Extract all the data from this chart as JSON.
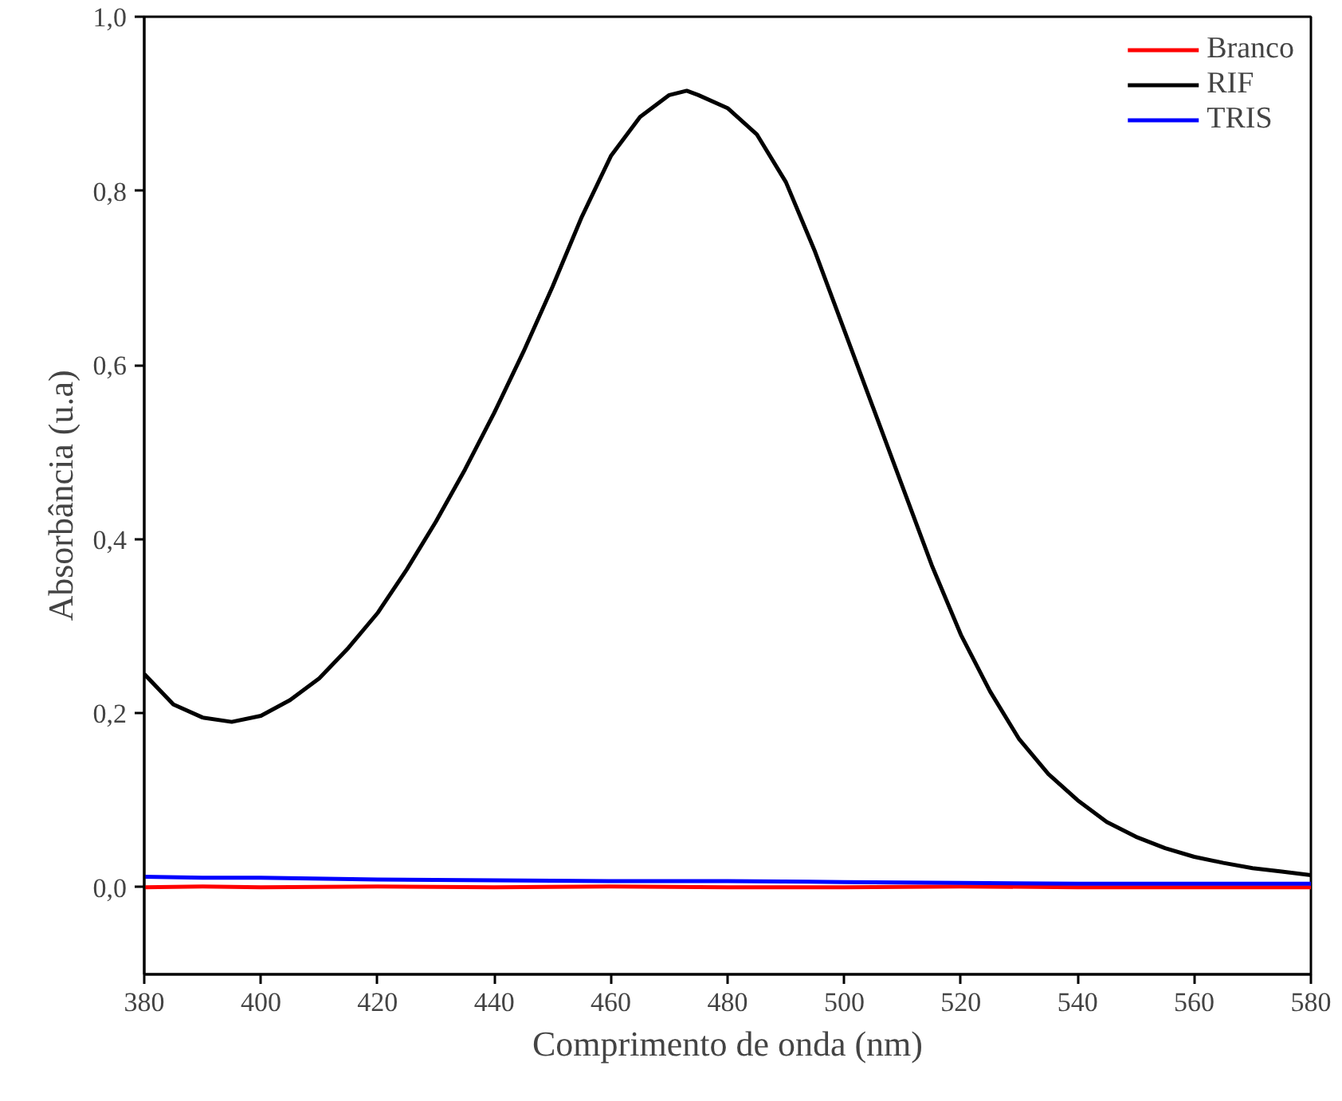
{
  "chart_data": {
    "type": "line",
    "xlabel": "Comprimento de onda (nm)",
    "ylabel": "Absorbância (u.a)",
    "xlim": [
      380,
      580
    ],
    "xticks": [
      380,
      400,
      420,
      440,
      460,
      480,
      500,
      520,
      540,
      560,
      580
    ],
    "ylim": [
      -0.1,
      1.0
    ],
    "yticks": [
      {
        "value": 0,
        "label": "0,0"
      },
      {
        "value": 0.2,
        "label": "0,2"
      },
      {
        "value": 0.4,
        "label": "0,4"
      },
      {
        "value": 0.6,
        "label": "0,6"
      },
      {
        "value": 0.8,
        "label": "0,8"
      },
      {
        "value": 1.0,
        "label": "1,0"
      }
    ],
    "grid": false,
    "legend": "top right",
    "line_style": "solid",
    "marker": "none",
    "series": [
      {
        "name": "Branco",
        "color": "#ff0000",
        "x": [
          380,
          390,
          400,
          420,
          440,
          460,
          480,
          500,
          520,
          540,
          560,
          580
        ],
        "values": [
          0.0,
          0.001,
          0.0,
          0.001,
          0.0,
          0.001,
          0.0,
          0.0,
          0.001,
          0.0,
          0.0,
          0.0
        ]
      },
      {
        "name": "RIF",
        "color": "#000000",
        "x": [
          380,
          385,
          390,
          395,
          400,
          405,
          410,
          415,
          420,
          425,
          430,
          435,
          440,
          445,
          450,
          455,
          460,
          465,
          470,
          473,
          475,
          480,
          485,
          490,
          495,
          500,
          505,
          510,
          515,
          520,
          525,
          530,
          535,
          540,
          545,
          550,
          555,
          560,
          565,
          570,
          575,
          580
        ],
        "values": [
          0.245,
          0.21,
          0.195,
          0.19,
          0.197,
          0.215,
          0.24,
          0.275,
          0.315,
          0.365,
          0.42,
          0.48,
          0.545,
          0.615,
          0.69,
          0.77,
          0.84,
          0.885,
          0.91,
          0.915,
          0.91,
          0.895,
          0.865,
          0.81,
          0.73,
          0.64,
          0.55,
          0.46,
          0.37,
          0.29,
          0.225,
          0.17,
          0.13,
          0.1,
          0.075,
          0.058,
          0.045,
          0.035,
          0.028,
          0.022,
          0.018,
          0.014
        ]
      },
      {
        "name": "TRIS",
        "color": "#0000ff",
        "x": [
          380,
          390,
          400,
          420,
          440,
          460,
          480,
          500,
          520,
          540,
          560,
          580
        ],
        "values": [
          0.012,
          0.011,
          0.011,
          0.009,
          0.008,
          0.007,
          0.007,
          0.006,
          0.005,
          0.004,
          0.004,
          0.004
        ]
      }
    ]
  }
}
